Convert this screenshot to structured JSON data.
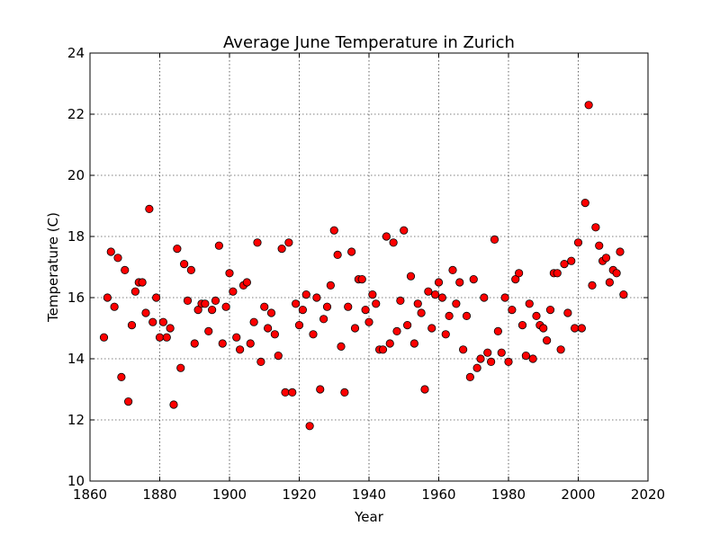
{
  "chart_data": {
    "type": "scatter",
    "title": "Average June Temperature in Zurich",
    "xlabel": "Year",
    "ylabel": "Temperature (C)",
    "xlim": [
      1860,
      2020
    ],
    "ylim": [
      10,
      24
    ],
    "xticks": [
      1860,
      1880,
      1900,
      1920,
      1940,
      1960,
      1980,
      2000,
      2020
    ],
    "yticks": [
      10,
      12,
      14,
      16,
      18,
      20,
      22,
      24
    ],
    "grid": true,
    "marker_color": "#ff0000",
    "marker_edge_color": "#000000",
    "points": [
      [
        1864,
        14.7
      ],
      [
        1865,
        16.0
      ],
      [
        1866,
        17.5
      ],
      [
        1867,
        15.7
      ],
      [
        1868,
        17.3
      ],
      [
        1869,
        13.4
      ],
      [
        1870,
        16.9
      ],
      [
        1871,
        12.6
      ],
      [
        1872,
        15.1
      ],
      [
        1873,
        16.2
      ],
      [
        1874,
        16.5
      ],
      [
        1875,
        16.5
      ],
      [
        1876,
        15.5
      ],
      [
        1877,
        18.9
      ],
      [
        1878,
        15.2
      ],
      [
        1879,
        16.0
      ],
      [
        1880,
        14.7
      ],
      [
        1881,
        15.2
      ],
      [
        1882,
        14.7
      ],
      [
        1883,
        15.0
      ],
      [
        1884,
        12.5
      ],
      [
        1885,
        17.6
      ],
      [
        1886,
        13.7
      ],
      [
        1887,
        17.1
      ],
      [
        1888,
        15.9
      ],
      [
        1889,
        16.9
      ],
      [
        1890,
        14.5
      ],
      [
        1891,
        15.6
      ],
      [
        1892,
        15.8
      ],
      [
        1893,
        15.8
      ],
      [
        1894,
        14.9
      ],
      [
        1895,
        15.6
      ],
      [
        1896,
        15.9
      ],
      [
        1897,
        17.7
      ],
      [
        1898,
        14.5
      ],
      [
        1899,
        15.7
      ],
      [
        1900,
        16.8
      ],
      [
        1901,
        16.2
      ],
      [
        1902,
        14.7
      ],
      [
        1903,
        14.3
      ],
      [
        1904,
        16.4
      ],
      [
        1905,
        16.5
      ],
      [
        1906,
        14.5
      ],
      [
        1907,
        15.2
      ],
      [
        1908,
        17.8
      ],
      [
        1909,
        13.9
      ],
      [
        1910,
        15.7
      ],
      [
        1911,
        15.0
      ],
      [
        1912,
        15.5
      ],
      [
        1913,
        14.8
      ],
      [
        1914,
        14.1
      ],
      [
        1915,
        17.6
      ],
      [
        1916,
        12.9
      ],
      [
        1917,
        17.8
      ],
      [
        1918,
        12.9
      ],
      [
        1919,
        15.8
      ],
      [
        1920,
        15.1
      ],
      [
        1921,
        15.6
      ],
      [
        1922,
        16.1
      ],
      [
        1923,
        11.8
      ],
      [
        1924,
        14.8
      ],
      [
        1925,
        16.0
      ],
      [
        1926,
        13.0
      ],
      [
        1927,
        15.3
      ],
      [
        1928,
        15.7
      ],
      [
        1929,
        16.4
      ],
      [
        1930,
        18.2
      ],
      [
        1931,
        17.4
      ],
      [
        1932,
        14.4
      ],
      [
        1933,
        12.9
      ],
      [
        1934,
        15.7
      ],
      [
        1935,
        17.5
      ],
      [
        1936,
        15.0
      ],
      [
        1937,
        16.6
      ],
      [
        1938,
        16.6
      ],
      [
        1939,
        15.6
      ],
      [
        1940,
        15.2
      ],
      [
        1941,
        16.1
      ],
      [
        1942,
        15.8
      ],
      [
        1943,
        14.3
      ],
      [
        1944,
        14.3
      ],
      [
        1945,
        18.0
      ],
      [
        1946,
        14.5
      ],
      [
        1947,
        17.8
      ],
      [
        1948,
        14.9
      ],
      [
        1949,
        15.9
      ],
      [
        1950,
        18.2
      ],
      [
        1951,
        15.1
      ],
      [
        1952,
        16.7
      ],
      [
        1953,
        14.5
      ],
      [
        1954,
        15.8
      ],
      [
        1955,
        15.5
      ],
      [
        1956,
        13.0
      ],
      [
        1957,
        16.2
      ],
      [
        1958,
        15.0
      ],
      [
        1959,
        16.1
      ],
      [
        1960,
        16.5
      ],
      [
        1961,
        16.0
      ],
      [
        1962,
        14.8
      ],
      [
        1963,
        15.4
      ],
      [
        1964,
        16.9
      ],
      [
        1965,
        15.8
      ],
      [
        1966,
        16.5
      ],
      [
        1967,
        14.3
      ],
      [
        1968,
        15.4
      ],
      [
        1969,
        13.4
      ],
      [
        1970,
        16.6
      ],
      [
        1971,
        13.7
      ],
      [
        1972,
        14.0
      ],
      [
        1973,
        16.0
      ],
      [
        1974,
        14.2
      ],
      [
        1975,
        13.9
      ],
      [
        1976,
        17.9
      ],
      [
        1977,
        14.9
      ],
      [
        1978,
        14.2
      ],
      [
        1979,
        16.0
      ],
      [
        1980,
        13.9
      ],
      [
        1981,
        15.6
      ],
      [
        1982,
        16.6
      ],
      [
        1983,
        16.8
      ],
      [
        1984,
        15.1
      ],
      [
        1985,
        14.1
      ],
      [
        1986,
        15.8
      ],
      [
        1987,
        14.0
      ],
      [
        1988,
        15.4
      ],
      [
        1989,
        15.1
      ],
      [
        1990,
        15.0
      ],
      [
        1991,
        14.6
      ],
      [
        1992,
        15.6
      ],
      [
        1993,
        16.8
      ],
      [
        1994,
        16.8
      ],
      [
        1995,
        14.3
      ],
      [
        1996,
        17.1
      ],
      [
        1997,
        15.5
      ],
      [
        1998,
        17.2
      ],
      [
        1999,
        15.0
      ],
      [
        2000,
        17.8
      ],
      [
        2001,
        15.0
      ],
      [
        2002,
        19.1
      ],
      [
        2003,
        22.3
      ],
      [
        2004,
        16.4
      ],
      [
        2005,
        18.3
      ],
      [
        2006,
        17.7
      ],
      [
        2007,
        17.2
      ],
      [
        2008,
        17.3
      ],
      [
        2009,
        16.5
      ],
      [
        2010,
        16.9
      ],
      [
        2011,
        16.8
      ],
      [
        2012,
        17.5
      ],
      [
        2013,
        16.1
      ]
    ]
  }
}
